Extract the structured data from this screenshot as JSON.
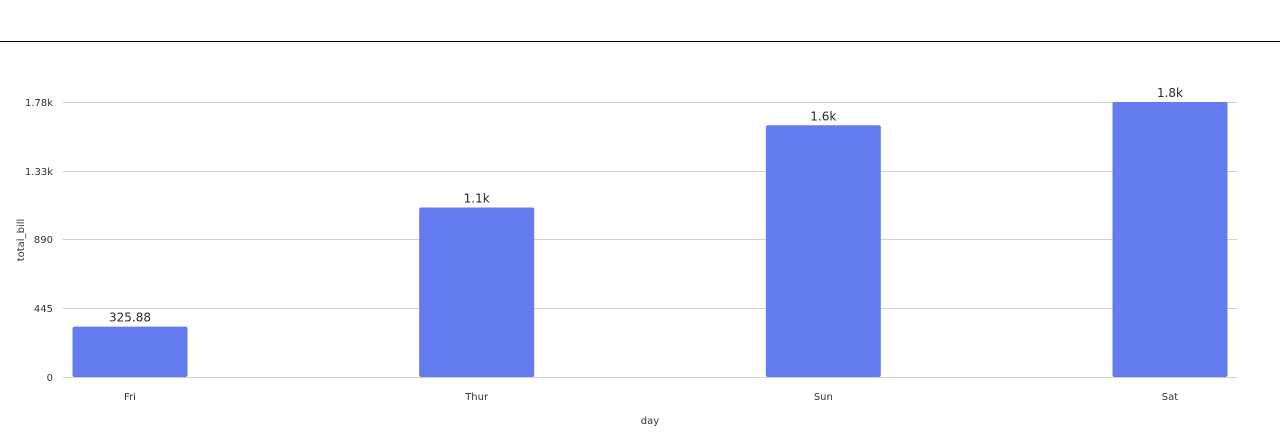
{
  "chart_data": {
    "type": "bar",
    "categories": [
      "Fri",
      "Thur",
      "Sun",
      "Sat"
    ],
    "values": [
      325.88,
      1096.33,
      1627.87,
      1778.4
    ],
    "value_labels": [
      "325.88",
      "1.1k",
      "1.6k",
      "1.8k"
    ],
    "title": "",
    "xlabel": "day",
    "ylabel": "total_bill",
    "ylim": [
      0,
      1778.4
    ],
    "y_ticks": [
      0,
      445,
      890,
      1330,
      1780
    ],
    "y_tick_labels": [
      "0",
      "445",
      "890",
      "1.33k",
      "1.78k"
    ],
    "grid": true,
    "colors": {
      "bar": "#657bf0"
    }
  }
}
